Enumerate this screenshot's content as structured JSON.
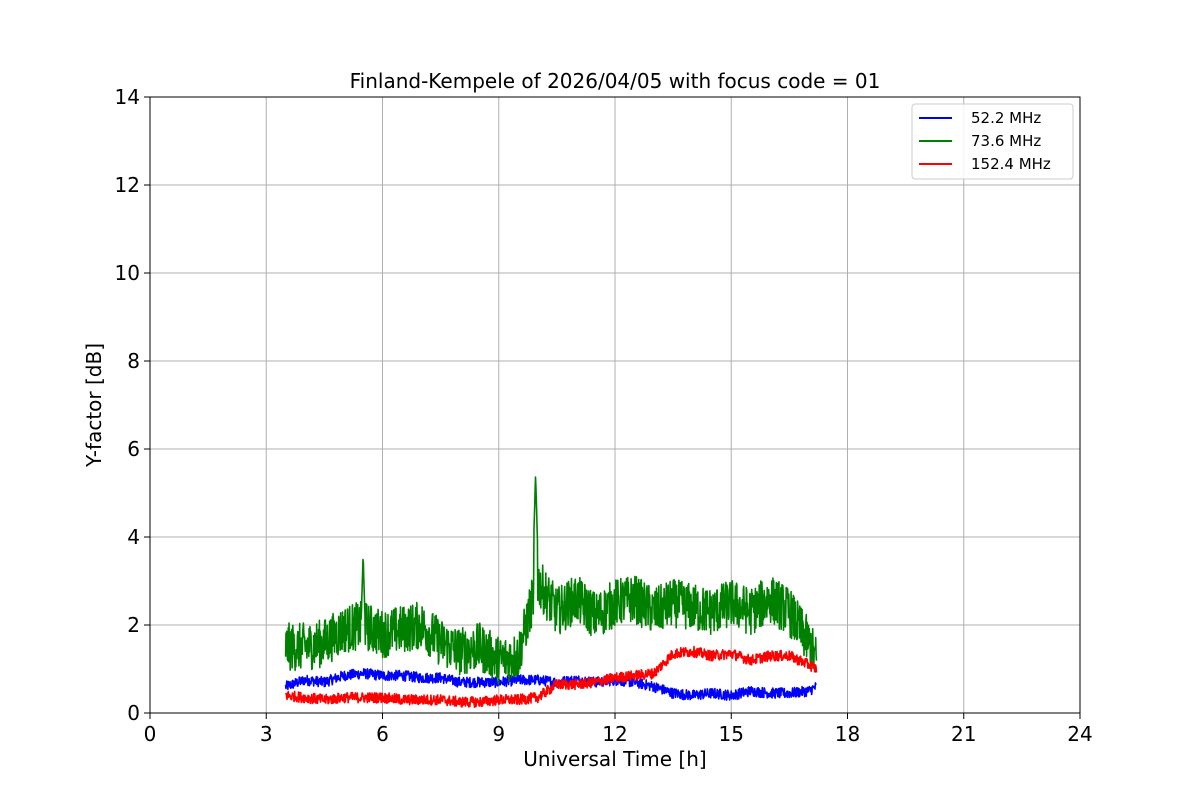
{
  "chart_data": {
    "type": "line",
    "title": "Finland-Kempele of 2026/04/05 with focus code = 01",
    "xlabel": "Universal Time [h]",
    "ylabel": "Y-factor [dB]",
    "xlim": [
      0,
      24
    ],
    "ylim": [
      0,
      14
    ],
    "xticks": [
      0,
      3,
      6,
      9,
      12,
      15,
      18,
      21,
      24
    ],
    "yticks": [
      0,
      2,
      4,
      6,
      8,
      10,
      12,
      14
    ],
    "grid": true,
    "legend_position": "top-right",
    "series": [
      {
        "name": "52.2 MHz",
        "label": " 52.2 MHz",
        "color": "#0000ff",
        "x": [
          3.5,
          4.0,
          4.5,
          5.0,
          5.5,
          6.0,
          6.5,
          7.0,
          7.5,
          8.0,
          8.5,
          9.0,
          9.5,
          10.0,
          10.5,
          11.0,
          11.5,
          12.0,
          12.5,
          13.0,
          13.5,
          14.0,
          14.5,
          15.0,
          15.5,
          16.0,
          16.5,
          17.0,
          17.2
        ],
        "values": [
          0.6,
          0.75,
          0.7,
          0.85,
          0.9,
          0.85,
          0.85,
          0.8,
          0.8,
          0.7,
          0.7,
          0.7,
          0.75,
          0.75,
          0.7,
          0.75,
          0.7,
          0.75,
          0.7,
          0.6,
          0.45,
          0.4,
          0.45,
          0.4,
          0.5,
          0.45,
          0.45,
          0.5,
          0.6
        ],
        "spread": 0.12
      },
      {
        "name": "73.6 MHz",
        "label": " 73.6 MHz",
        "color": "#008000",
        "x": [
          3.5,
          4.0,
          4.5,
          5.0,
          5.5,
          6.0,
          6.5,
          7.0,
          7.5,
          8.0,
          8.5,
          9.0,
          9.5,
          10.0,
          10.5,
          11.0,
          11.5,
          12.0,
          12.5,
          13.0,
          13.5,
          14.0,
          14.5,
          15.0,
          15.5,
          16.0,
          16.5,
          17.0,
          17.2
        ],
        "values": [
          1.5,
          1.5,
          1.6,
          1.9,
          2.0,
          1.8,
          1.9,
          2.0,
          1.6,
          1.4,
          1.5,
          1.2,
          1.3,
          3.0,
          2.3,
          2.6,
          2.2,
          2.5,
          2.6,
          2.3,
          2.5,
          2.4,
          2.3,
          2.5,
          2.3,
          2.6,
          2.3,
          1.6,
          1.2
        ],
        "spread": 0.55,
        "spikes": [
          {
            "x": 5.5,
            "y": 3.6
          },
          {
            "x": 9.95,
            "y": 5.4
          }
        ]
      },
      {
        "name": "152.4 MHz",
        "label": "152.4 MHz",
        "color": "#ff0000",
        "x": [
          3.5,
          4.0,
          4.5,
          5.0,
          5.5,
          6.0,
          6.5,
          7.0,
          7.5,
          8.0,
          8.5,
          9.0,
          9.5,
          10.0,
          10.5,
          11.0,
          11.5,
          12.0,
          12.5,
          13.0,
          13.5,
          14.0,
          14.5,
          15.0,
          15.5,
          16.0,
          16.5,
          17.0,
          17.2
        ],
        "values": [
          0.4,
          0.35,
          0.3,
          0.35,
          0.35,
          0.35,
          0.3,
          0.3,
          0.3,
          0.25,
          0.25,
          0.3,
          0.3,
          0.35,
          0.65,
          0.65,
          0.7,
          0.8,
          0.85,
          0.9,
          1.35,
          1.4,
          1.3,
          1.35,
          1.2,
          1.3,
          1.3,
          1.1,
          1.0
        ],
        "spread": 0.12
      }
    ]
  }
}
